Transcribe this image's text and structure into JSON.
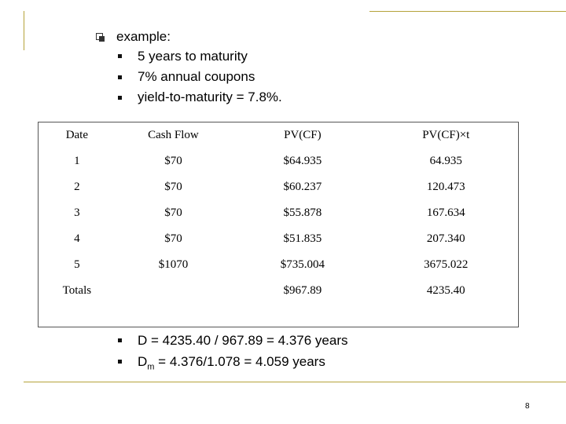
{
  "main_bullet": "example:",
  "sub_bullets": [
    "5 years to maturity",
    "7% annual coupons",
    "yield-to-maturity = 7.8%."
  ],
  "table": {
    "headers": [
      "Date",
      "Cash Flow",
      "PV(CF)",
      "PV(CF)×t"
    ],
    "rows": [
      [
        "1",
        "$70",
        "$64.935",
        "64.935"
      ],
      [
        "2",
        "$70",
        "$60.237",
        "120.473"
      ],
      [
        "3",
        "$70",
        "$55.878",
        "167.634"
      ],
      [
        "4",
        "$70",
        "$51.835",
        "207.340"
      ],
      [
        "5",
        "$1070",
        "$735.004",
        "3675.022"
      ],
      [
        "Totals",
        "",
        "$967.89",
        "4235.40"
      ]
    ]
  },
  "results": {
    "duration": "D = 4235.40 / 967.89 = 4.376 years",
    "modified_prefix": "D",
    "modified_sub": "m",
    "modified_rest": " = 4.376/1.078 = 4.059 years"
  },
  "page_number": "8",
  "colors": {
    "accent_line": "#b5a33a"
  }
}
